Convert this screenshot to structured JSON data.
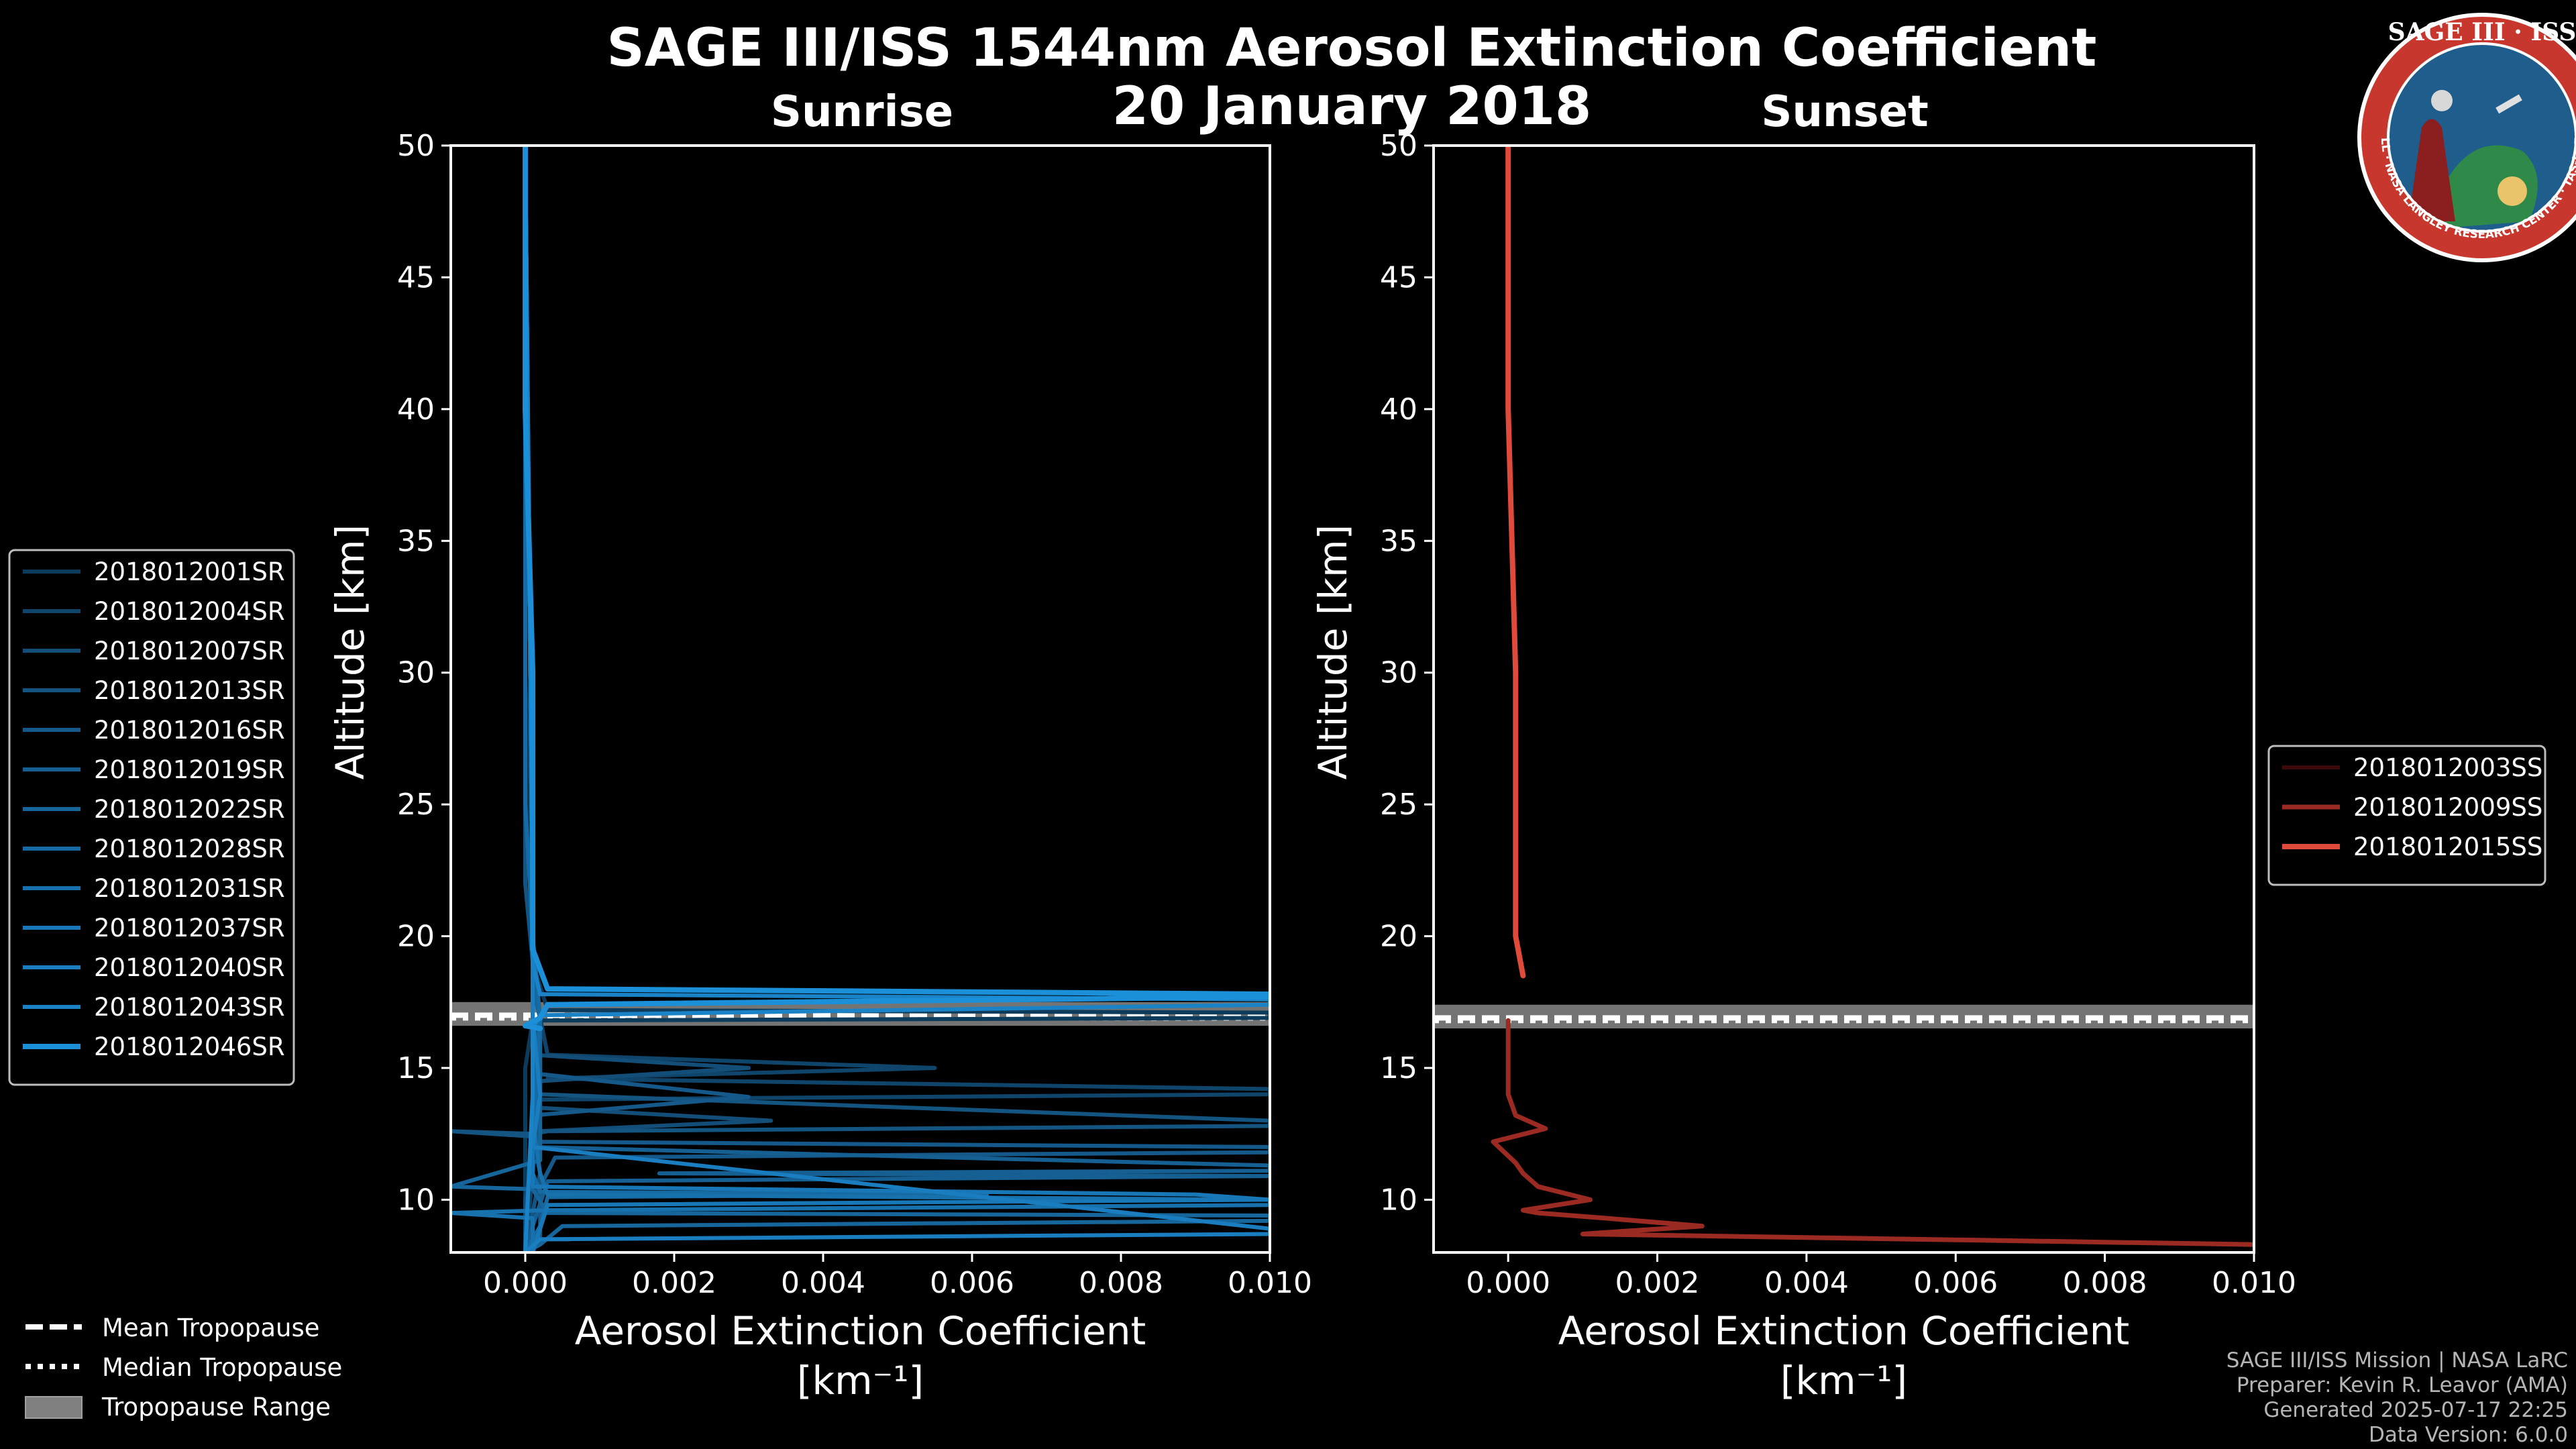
{
  "figure": {
    "title_line1": "SAGE III/ISS 1544nm Aerosol Extinction Coefficient",
    "title_line2": "20 January 2018",
    "mission_credit": "SAGE III/ISS Mission | NASA LaRC",
    "preparer": "Preparer: Kevin R. Leavor (AMA)",
    "generated": "Generated 2025-07-17 22:25",
    "data_version": "Data Version: 6.0.0"
  },
  "logo": {
    "top_text": "SAGE III · ISS",
    "ring_text": "BALL · NASA LANGLEY RESEARCH CENTER · TAS-I · ESA",
    "colors": {
      "ring": "#c8372d",
      "field": "#1f5d8c",
      "land": "#2f8a4a",
      "gold": "#e9c46a"
    }
  },
  "tropopause_legend": {
    "mean": "Mean Tropopause",
    "median": "Median Tropopause",
    "range": "Tropopause Range"
  },
  "chart_data": [
    {
      "type": "line",
      "panel": "sunrise",
      "title": "Sunrise",
      "xlabel": "Aerosol Extinction Coefficient",
      "xunit": "[km⁻¹]",
      "ylabel": "Altitude [km]",
      "xlim": [
        -0.001,
        0.01
      ],
      "ylim": [
        8,
        50
      ],
      "xticks": [
        0.0,
        0.002,
        0.004,
        0.006,
        0.008,
        0.01
      ],
      "xtick_labels": [
        "0.000",
        "0.002",
        "0.004",
        "0.006",
        "0.008",
        "0.010"
      ],
      "yticks": [
        10,
        15,
        20,
        25,
        30,
        35,
        40,
        45,
        50
      ],
      "ytick_labels": [
        "10",
        "15",
        "20",
        "25",
        "30",
        "35",
        "40",
        "45",
        "50"
      ],
      "legend_position": "left",
      "tropopause": {
        "mean": 17.0,
        "median": 16.9,
        "range": [
          16.6,
          17.5
        ]
      },
      "series": [
        {
          "name": "2018012001SR",
          "color": "#0d3b5c",
          "width": 6,
          "points": [
            [
              0.0,
              50
            ],
            [
              0.0,
              30
            ],
            [
              0.0001,
              20
            ],
            [
              0.0001,
              19
            ],
            [
              0.0003,
              17.2
            ],
            [
              0.01,
              17.1
            ],
            [
              0.01,
              16.9
            ],
            [
              0.0001,
              16.8
            ],
            [
              0.0,
              15
            ],
            [
              0.0,
              12
            ],
            [
              0.0,
              8
            ]
          ]
        },
        {
          "name": "2018012004SR",
          "color": "#10456b",
          "width": 6,
          "points": [
            [
              0.0,
              50
            ],
            [
              0.0001,
              20
            ],
            [
              0.0001,
              18
            ],
            [
              0.0002,
              16.9
            ],
            [
              0.0003,
              15.5
            ],
            [
              0.0055,
              15.0
            ],
            [
              0.0003,
              14.6
            ],
            [
              0.01,
              14.2
            ],
            [
              0.01,
              14.0
            ],
            [
              0.0002,
              13.8
            ],
            [
              0.0001,
              11
            ],
            [
              0.0,
              8
            ]
          ]
        },
        {
          "name": "2018012007SR",
          "color": "#124e78",
          "width": 6,
          "points": [
            [
              0.0,
              50
            ],
            [
              0.0001,
              20
            ],
            [
              0.0001,
              18
            ],
            [
              0.0002,
              16.9
            ],
            [
              0.0001,
              15.5
            ],
            [
              0.003,
              15.0
            ],
            [
              0.0002,
              14.5
            ],
            [
              0.0001,
              13.5
            ],
            [
              0.0033,
              13.0
            ],
            [
              0.0002,
              12.6
            ],
            [
              0.0,
              10
            ],
            [
              0.0,
              8
            ]
          ]
        },
        {
          "name": "2018012013SR",
          "color": "#135481",
          "width": 6,
          "points": [
            [
              0.0,
              50
            ],
            [
              0.0,
              22
            ],
            [
              0.0001,
              19
            ],
            [
              0.0002,
              16.9
            ],
            [
              0.0002,
              14
            ],
            [
              0.01,
              13.0
            ],
            [
              0.01,
              12.8
            ],
            [
              0.0003,
              12.6
            ],
            [
              0.0001,
              12.5
            ],
            [
              -0.001,
              12.6
            ],
            [
              0.0001,
              12.4
            ],
            [
              0.0002,
              11
            ],
            [
              0.0,
              8
            ]
          ]
        },
        {
          "name": "2018012016SR",
          "color": "#14598a",
          "width": 6,
          "points": [
            [
              0.0,
              50
            ],
            [
              0.0001,
              21
            ],
            [
              0.0001,
              18.5
            ],
            [
              0.0002,
              16.9
            ],
            [
              0.0001,
              14.8
            ],
            [
              0.003,
              13.9
            ],
            [
              0.0001,
              13.2
            ],
            [
              0.0002,
              12.2
            ],
            [
              0.01,
              12.0
            ],
            [
              0.01,
              11.8
            ],
            [
              0.0004,
              11.6
            ],
            [
              0.0002,
              10.5
            ],
            [
              0.0002,
              8.5
            ],
            [
              0.0006,
              8.5
            ]
          ]
        },
        {
          "name": "2018012019SR",
          "color": "#155f93",
          "width": 6,
          "points": [
            [
              0.0,
              50
            ],
            [
              0.0001,
              20
            ],
            [
              0.0001,
              18
            ],
            [
              0.0002,
              16.9
            ],
            [
              0.0001,
              14
            ],
            [
              0.0001,
              12
            ],
            [
              0.01,
              11.3
            ],
            [
              0.01,
              11.1
            ],
            [
              0.0018,
              11.0
            ],
            [
              0.01,
              10.9
            ],
            [
              0.0003,
              10.7
            ],
            [
              0.0001,
              9
            ],
            [
              0.0,
              8
            ]
          ]
        },
        {
          "name": "2018012022SR",
          "color": "#16659b",
          "width": 6,
          "points": [
            [
              0.0,
              50
            ],
            [
              0.0001,
              20
            ],
            [
              0.0001,
              18
            ],
            [
              0.0002,
              16.9
            ],
            [
              0.0002,
              13
            ],
            [
              0.0002,
              11.5
            ],
            [
              -0.001,
              10.5
            ],
            [
              0.0001,
              10.4
            ],
            [
              0.0003,
              9.5
            ],
            [
              0.01,
              9.4
            ],
            [
              0.01,
              9.2
            ],
            [
              0.0005,
              9.0
            ],
            [
              0.0002,
              8.3
            ],
            [
              0.0,
              8
            ]
          ]
        },
        {
          "name": "2018012028SR",
          "color": "#176ba4",
          "width": 6,
          "points": [
            [
              0.0,
              50
            ],
            [
              0.0,
              25
            ],
            [
              0.0001,
              20
            ],
            [
              0.0002,
              16.9
            ],
            [
              0.0001,
              12
            ],
            [
              0.0001,
              11
            ],
            [
              0.0002,
              10.3
            ],
            [
              0.0062,
              10.2
            ],
            [
              0.0003,
              10.1
            ],
            [
              0.0002,
              9
            ],
            [
              0.0,
              8
            ]
          ]
        },
        {
          "name": "2018012031SR",
          "color": "#1771ad",
          "width": 6,
          "points": [
            [
              0.0,
              50
            ],
            [
              0.0001,
              20
            ],
            [
              0.0001,
              18
            ],
            [
              0.0001,
              16.9
            ],
            [
              0.0001,
              13
            ],
            [
              0.0002,
              11
            ],
            [
              0.0003,
              10.2
            ],
            [
              0.01,
              10.0
            ],
            [
              0.01,
              9.8
            ],
            [
              0.0003,
              9.6
            ],
            [
              -0.001,
              9.5
            ],
            [
              0.0001,
              9.3
            ],
            [
              0.0001,
              8
            ]
          ]
        },
        {
          "name": "2018012037SR",
          "color": "#1877b6",
          "width": 6,
          "points": [
            [
              0.0,
              50
            ],
            [
              0.0001,
              20
            ],
            [
              0.0001,
              18
            ],
            [
              0.0001,
              16.9
            ],
            [
              0.0001,
              12
            ],
            [
              0.0001,
              10.5
            ],
            [
              0.009,
              10.2
            ],
            [
              0.01,
              10.0
            ],
            [
              0.0003,
              9.8
            ],
            [
              0.0001,
              8
            ]
          ]
        },
        {
          "name": "2018012040SR",
          "color": "#197dbf",
          "width": 6,
          "points": [
            [
              0.0,
              50
            ],
            [
              0.0001,
              20
            ],
            [
              0.0001,
              18
            ],
            [
              0.0001,
              16.9
            ],
            [
              0.0002,
              14
            ],
            [
              0.0001,
              12
            ],
            [
              0.01,
              8.9
            ],
            [
              0.01,
              8.7
            ],
            [
              0.0002,
              8.5
            ],
            [
              0.0,
              8
            ]
          ]
        },
        {
          "name": "2018012043SR",
          "color": "#1a83c8",
          "width": 6,
          "points": [
            [
              0.0,
              50
            ],
            [
              0.0001,
              22
            ],
            [
              0.0001,
              19
            ],
            [
              0.0002,
              17.8
            ],
            [
              0.01,
              17.6
            ],
            [
              0.01,
              17.4
            ],
            [
              0.0002,
              17.0
            ],
            [
              0.0001,
              16.5
            ],
            [
              0.0001,
              14
            ],
            [
              0.0,
              8
            ]
          ]
        },
        {
          "name": "2018012046SR",
          "color": "#1b8fd8",
          "width": 8,
          "points": [
            [
              0.0,
              50
            ],
            [
              0.0,
              40
            ],
            [
              0.0001,
              30
            ],
            [
              0.0001,
              22
            ],
            [
              0.0001,
              19.5
            ],
            [
              0.0003,
              18.0
            ],
            [
              0.01,
              17.8
            ],
            [
              0.01,
              17.7
            ],
            [
              0.0003,
              17.4
            ],
            [
              0.0002,
              16.9
            ],
            [
              0.0,
              16.6
            ],
            [
              0.0002,
              16.5
            ]
          ]
        }
      ]
    },
    {
      "type": "line",
      "panel": "sunset",
      "title": "Sunset",
      "xlabel": "Aerosol Extinction Coefficient",
      "xunit": "[km⁻¹]",
      "ylabel": "Altitude [km]",
      "xlim": [
        -0.001,
        0.01
      ],
      "ylim": [
        8,
        50
      ],
      "xticks": [
        0.0,
        0.002,
        0.004,
        0.006,
        0.008,
        0.01
      ],
      "xtick_labels": [
        "0.000",
        "0.002",
        "0.004",
        "0.006",
        "0.008",
        "0.010"
      ],
      "yticks": [
        10,
        15,
        20,
        25,
        30,
        35,
        40,
        45,
        50
      ],
      "ytick_labels": [
        "10",
        "15",
        "20",
        "25",
        "30",
        "35",
        "40",
        "45",
        "50"
      ],
      "legend_position": "right",
      "tropopause": {
        "mean": 16.9,
        "median": 16.8,
        "range": [
          16.5,
          17.4
        ]
      },
      "series": [
        {
          "name": "2018012003SS",
          "color": "#3a0a0a",
          "width": 6,
          "points": []
        },
        {
          "name": "2018012009SS",
          "color": "#9a2a22",
          "width": 7,
          "points": [
            [
              0.0,
              16.8
            ],
            [
              0.0,
              15
            ],
            [
              0.0,
              14
            ],
            [
              0.0001,
              13.2
            ],
            [
              0.0005,
              12.7
            ],
            [
              -0.0002,
              12.2
            ],
            [
              0.0001,
              11.4
            ],
            [
              0.0002,
              11.0
            ],
            [
              0.0004,
              10.5
            ],
            [
              0.0011,
              10.0
            ],
            [
              0.0002,
              9.6
            ],
            [
              0.0004,
              9.5
            ],
            [
              0.0013,
              9.3
            ],
            [
              0.0026,
              9.0
            ],
            [
              0.001,
              8.7
            ],
            [
              0.01,
              8.3
            ]
          ]
        },
        {
          "name": "2018012015SS",
          "color": "#e04a3a",
          "width": 8,
          "points": [
            [
              0.0,
              50
            ],
            [
              0.0,
              40
            ],
            [
              0.0001,
              30
            ],
            [
              0.0001,
              25
            ],
            [
              0.0001,
              22
            ],
            [
              0.0001,
              20
            ],
            [
              0.0002,
              18.5
            ]
          ]
        }
      ]
    }
  ]
}
